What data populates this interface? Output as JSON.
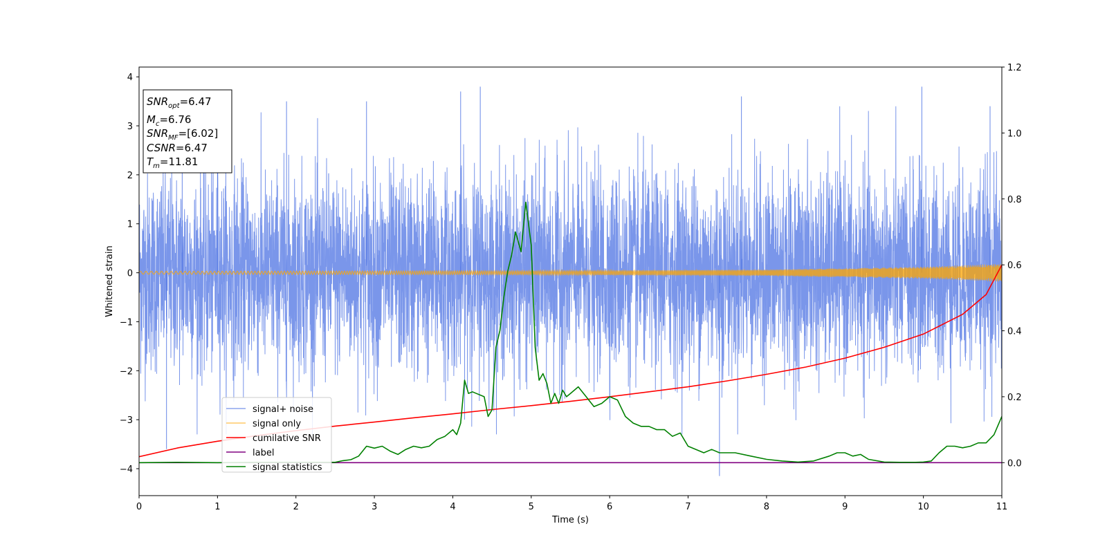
{
  "chart_data": {
    "type": "line",
    "xlabel": "Time (s)",
    "ylabel": "Whitened strain",
    "xlim": [
      0,
      11
    ],
    "ylim": [
      -4.55,
      4.2
    ],
    "y2lim": [
      -0.1,
      1.2
    ],
    "x_ticks": [
      "0",
      "1",
      "2",
      "3",
      "4",
      "5",
      "6",
      "7",
      "8",
      "9",
      "10",
      "11"
    ],
    "y_ticks": [
      "−4",
      "−3",
      "−2",
      "−1",
      "0",
      "1",
      "2",
      "3",
      "4"
    ],
    "y2_ticks": [
      "0.0",
      "0.2",
      "0.4",
      "0.6",
      "0.8",
      "1.0",
      "1.2"
    ],
    "info_box": {
      "snr_opt": {
        "main": "SNR",
        "sub": "opt",
        "value": "=6.47"
      },
      "mc": {
        "main": "M",
        "sub": "c",
        "value": "=6.76"
      },
      "snr_mf": {
        "main": "SNR",
        "sub": "MF",
        "value": "=[6.02]"
      },
      "csnr": {
        "main": "CSNR",
        "sub": "",
        "value": "=6.47"
      },
      "tm": {
        "main": "T",
        "sub": "m",
        "value": "=11.81"
      }
    },
    "legend": [
      {
        "name": "signal+ noise",
        "color": "#4169e1"
      },
      {
        "name": "signal only",
        "color": "#ffa500"
      },
      {
        "name": "cumilative SNR",
        "color": "#ff0000"
      },
      {
        "name": "label",
        "color": "#800080"
      },
      {
        "name": "signal statistics",
        "color": "#008000"
      }
    ],
    "series": [
      {
        "name": "signal+ noise",
        "axis": "left",
        "color": "#4169e1",
        "description_points": "dense whitened noise, std ~1, range about -4.2..3.8",
        "peaks": [
          [
            0.35,
            -3.6
          ],
          [
            0.55,
            3.3
          ],
          [
            1.0,
            3.3
          ],
          [
            1.88,
            3.5
          ],
          [
            2.9,
            3.5
          ],
          [
            4.1,
            3.7
          ],
          [
            4.35,
            3.8
          ],
          [
            7.4,
            -4.15
          ],
          [
            7.68,
            3.6
          ],
          [
            9.98,
            3.8
          ],
          [
            10.85,
            3.4
          ]
        ]
      },
      {
        "name": "signal only",
        "axis": "left",
        "color": "#ffa500",
        "amplitude": [
          [
            0,
            0.03
          ],
          [
            5,
            0.04
          ],
          [
            8,
            0.06
          ],
          [
            9,
            0.09
          ],
          [
            10,
            0.12
          ],
          [
            10.5,
            0.15
          ],
          [
            11,
            0.18
          ]
        ]
      },
      {
        "name": "cumilative SNR",
        "axis": "right",
        "x": [
          0,
          0.5,
          1,
          1.5,
          2,
          2.5,
          3,
          3.5,
          4,
          4.5,
          5,
          5.5,
          6,
          6.5,
          7,
          7.5,
          8,
          8.5,
          9,
          9.5,
          10,
          10.5,
          10.8,
          11
        ],
        "y": [
          0.018,
          0.045,
          0.065,
          0.082,
          0.097,
          0.111,
          0.123,
          0.136,
          0.148,
          0.161,
          0.173,
          0.186,
          0.2,
          0.215,
          0.23,
          0.248,
          0.268,
          0.29,
          0.317,
          0.35,
          0.39,
          0.45,
          0.51,
          0.6
        ]
      },
      {
        "name": "label",
        "axis": "right",
        "x": [
          0,
          11
        ],
        "y": [
          0,
          0
        ]
      },
      {
        "name": "signal statistics",
        "axis": "right",
        "x": [
          0,
          0.5,
          1,
          1.5,
          2,
          2.5,
          2.6,
          2.7,
          2.8,
          2.9,
          3.0,
          3.1,
          3.2,
          3.3,
          3.4,
          3.5,
          3.6,
          3.7,
          3.8,
          3.9,
          4.0,
          4.05,
          4.1,
          4.15,
          4.2,
          4.25,
          4.3,
          4.4,
          4.45,
          4.5,
          4.55,
          4.6,
          4.65,
          4.7,
          4.75,
          4.8,
          4.87,
          4.93,
          5.0,
          5.05,
          5.1,
          5.15,
          5.2,
          5.25,
          5.3,
          5.35,
          5.4,
          5.45,
          5.5,
          5.6,
          5.7,
          5.8,
          5.9,
          6.0,
          6.1,
          6.2,
          6.3,
          6.4,
          6.5,
          6.6,
          6.7,
          6.8,
          6.9,
          7.0,
          7.1,
          7.2,
          7.3,
          7.4,
          7.5,
          7.6,
          7.8,
          8.0,
          8.2,
          8.4,
          8.6,
          8.8,
          8.9,
          9.0,
          9.1,
          9.2,
          9.3,
          9.5,
          9.7,
          9.9,
          10.0,
          10.1,
          10.2,
          10.3,
          10.4,
          10.5,
          10.6,
          10.7,
          10.8,
          10.9,
          11.0
        ],
        "y": [
          0.0,
          0.001,
          0.0,
          0.001,
          0.001,
          0.001,
          0.006,
          0.009,
          0.02,
          0.05,
          0.044,
          0.05,
          0.035,
          0.025,
          0.04,
          0.05,
          0.045,
          0.05,
          0.07,
          0.08,
          0.1,
          0.085,
          0.12,
          0.25,
          0.21,
          0.215,
          0.21,
          0.2,
          0.14,
          0.16,
          0.35,
          0.4,
          0.5,
          0.58,
          0.63,
          0.7,
          0.64,
          0.79,
          0.66,
          0.35,
          0.25,
          0.27,
          0.24,
          0.18,
          0.21,
          0.18,
          0.22,
          0.2,
          0.21,
          0.23,
          0.2,
          0.17,
          0.18,
          0.2,
          0.19,
          0.14,
          0.12,
          0.11,
          0.11,
          0.1,
          0.1,
          0.08,
          0.09,
          0.05,
          0.04,
          0.03,
          0.04,
          0.03,
          0.03,
          0.03,
          0.02,
          0.01,
          0.005,
          0.002,
          0.005,
          0.02,
          0.03,
          0.03,
          0.02,
          0.025,
          0.01,
          0.002,
          0.001,
          0.001,
          0.002,
          0.005,
          0.03,
          0.05,
          0.05,
          0.045,
          0.05,
          0.06,
          0.06,
          0.085,
          0.14
        ]
      }
    ]
  }
}
